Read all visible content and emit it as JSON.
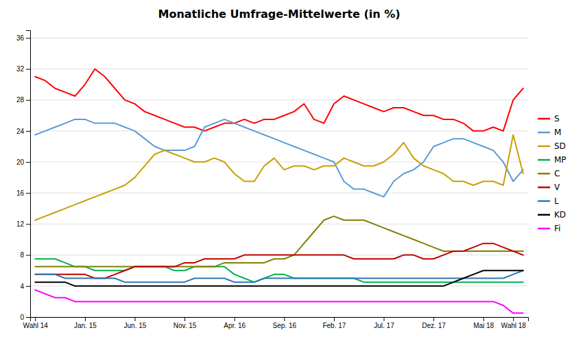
{
  "chart_data": {
    "type": "line",
    "title": "Monatliche Umfrage-Mittelwerte (in %)",
    "categories": [
      "Wahl 14",
      null,
      null,
      null,
      null,
      "Jan. 15",
      null,
      null,
      null,
      null,
      "Jun. 15",
      null,
      null,
      null,
      null,
      "Nov. 15",
      null,
      null,
      null,
      null,
      "Apr. 16",
      null,
      null,
      null,
      null,
      "Sep. 16",
      null,
      null,
      null,
      null,
      "Feb. 17",
      null,
      null,
      null,
      null,
      "Jul. 17",
      null,
      null,
      null,
      null,
      "Dez. 17",
      null,
      null,
      null,
      null,
      "Mai 18",
      null,
      null,
      "Wahl 18",
      null
    ],
    "ylim": [
      0,
      37
    ],
    "yticks": [
      0,
      4,
      8,
      12,
      16,
      20,
      24,
      28,
      32,
      36
    ],
    "grid": true,
    "legend": "right",
    "series": [
      {
        "name": "S",
        "color": "#ff0000",
        "values": [
          31.0,
          30.5,
          29.5,
          29.0,
          28.5,
          30.0,
          32.0,
          31.0,
          29.5,
          28.0,
          27.5,
          26.5,
          26.0,
          25.5,
          25.0,
          24.5,
          24.5,
          24.0,
          24.5,
          25.0,
          25.0,
          25.5,
          25.0,
          25.5,
          25.5,
          26.0,
          26.5,
          27.5,
          25.5,
          25.0,
          27.5,
          28.5,
          28.0,
          27.5,
          27.0,
          26.5,
          27.0,
          27.0,
          26.5,
          26.0,
          26.0,
          25.5,
          25.5,
          25.0,
          24.0,
          24.0,
          24.5,
          24.0,
          28.0,
          29.5
        ]
      },
      {
        "name": "M",
        "color": "#5b9bd5",
        "values": [
          23.5,
          24.0,
          24.5,
          25.0,
          25.5,
          25.5,
          25.0,
          25.0,
          25.0,
          24.5,
          24.0,
          23.0,
          22.0,
          21.5,
          21.5,
          21.5,
          22.0,
          24.5,
          25.0,
          25.5,
          25.0,
          24.5,
          24.0,
          23.5,
          23.0,
          22.5,
          22.0,
          21.5,
          21.0,
          20.5,
          20.0,
          17.5,
          16.5,
          16.5,
          16.0,
          15.5,
          17.5,
          18.5,
          19.0,
          20.0,
          22.0,
          22.5,
          23.0,
          23.0,
          22.5,
          22.0,
          21.5,
          20.0,
          17.5,
          19.0
        ]
      },
      {
        "name": "SD",
        "color": "#c8a000",
        "values": [
          12.5,
          13.0,
          13.5,
          14.0,
          14.5,
          15.0,
          15.5,
          16.0,
          16.5,
          17.0,
          18.0,
          19.5,
          21.0,
          21.5,
          21.0,
          20.5,
          20.0,
          20.0,
          20.5,
          20.0,
          18.5,
          17.5,
          17.5,
          19.5,
          20.5,
          19.0,
          19.5,
          19.5,
          19.0,
          19.5,
          19.5,
          20.5,
          20.0,
          19.5,
          19.5,
          20.0,
          21.0,
          22.5,
          20.5,
          19.5,
          19.0,
          18.5,
          17.5,
          17.5,
          17.0,
          17.5,
          17.5,
          17.0,
          23.5,
          18.5
        ]
      },
      {
        "name": "MP",
        "color": "#00b050",
        "values": [
          7.5,
          7.5,
          7.5,
          7.0,
          6.5,
          6.5,
          6.0,
          6.0,
          6.0,
          6.0,
          6.5,
          6.5,
          6.5,
          6.5,
          6.0,
          6.0,
          6.5,
          6.5,
          6.5,
          6.5,
          5.5,
          5.0,
          4.5,
          5.0,
          5.5,
          5.5,
          5.0,
          5.0,
          5.0,
          5.0,
          5.0,
          5.0,
          5.0,
          4.5,
          4.5,
          4.5,
          4.5,
          4.5,
          4.5,
          4.5,
          4.5,
          4.5,
          4.5,
          4.5,
          4.5,
          4.5,
          4.5,
          4.5,
          4.5,
          4.5
        ]
      },
      {
        "name": "C",
        "color": "#808000",
        "values": [
          6.5,
          6.5,
          6.5,
          6.5,
          6.5,
          6.5,
          6.5,
          6.5,
          6.5,
          6.5,
          6.5,
          6.5,
          6.5,
          6.5,
          6.5,
          6.5,
          6.5,
          6.5,
          6.5,
          7.0,
          7.0,
          7.0,
          7.0,
          7.0,
          7.5,
          7.5,
          8.0,
          9.5,
          11.0,
          12.5,
          13.0,
          12.5,
          12.5,
          12.5,
          12.0,
          11.5,
          11.0,
          10.5,
          10.0,
          9.5,
          9.0,
          8.5,
          8.5,
          8.5,
          8.5,
          8.5,
          8.5,
          8.5,
          8.5,
          8.5
        ]
      },
      {
        "name": "V",
        "color": "#c00000",
        "values": [
          5.5,
          5.5,
          5.5,
          5.5,
          5.5,
          5.5,
          5.0,
          5.0,
          5.5,
          6.0,
          6.5,
          6.5,
          6.5,
          6.5,
          6.5,
          7.0,
          7.0,
          7.5,
          7.5,
          7.5,
          7.5,
          8.0,
          8.0,
          8.0,
          8.0,
          8.0,
          8.0,
          8.0,
          8.0,
          8.0,
          8.0,
          8.0,
          7.5,
          7.5,
          7.5,
          7.5,
          7.5,
          8.0,
          8.0,
          7.5,
          7.5,
          8.0,
          8.5,
          8.5,
          9.0,
          9.5,
          9.5,
          9.0,
          8.5,
          8.0
        ]
      },
      {
        "name": "L",
        "color": "#2e75b6",
        "values": [
          5.5,
          5.5,
          5.5,
          5.0,
          5.0,
          5.0,
          5.0,
          5.0,
          5.0,
          4.5,
          4.5,
          4.5,
          4.5,
          4.5,
          4.5,
          4.5,
          5.0,
          5.0,
          5.0,
          5.0,
          4.5,
          4.5,
          4.5,
          5.0,
          5.0,
          5.0,
          5.0,
          5.0,
          5.0,
          5.0,
          5.0,
          5.0,
          5.0,
          5.0,
          5.0,
          5.0,
          5.0,
          5.0,
          5.0,
          5.0,
          5.0,
          5.0,
          5.0,
          5.0,
          5.0,
          5.0,
          5.0,
          5.0,
          5.5,
          6.0
        ]
      },
      {
        "name": "KD",
        "color": "#000000",
        "values": [
          4.5,
          4.5,
          4.5,
          4.5,
          4.0,
          4.0,
          4.0,
          4.0,
          4.0,
          4.0,
          4.0,
          4.0,
          4.0,
          4.0,
          4.0,
          4.0,
          4.0,
          4.0,
          4.0,
          4.0,
          4.0,
          4.0,
          4.0,
          4.0,
          4.0,
          4.0,
          4.0,
          4.0,
          4.0,
          4.0,
          4.0,
          4.0,
          4.0,
          4.0,
          4.0,
          4.0,
          4.0,
          4.0,
          4.0,
          4.0,
          4.0,
          4.0,
          4.5,
          5.0,
          5.5,
          6.0,
          6.0,
          6.0,
          6.0,
          6.0
        ]
      },
      {
        "name": "Fi",
        "color": "#ff00ff",
        "values": [
          3.5,
          3.0,
          2.5,
          2.5,
          2.0,
          2.0,
          2.0,
          2.0,
          2.0,
          2.0,
          2.0,
          2.0,
          2.0,
          2.0,
          2.0,
          2.0,
          2.0,
          2.0,
          2.0,
          2.0,
          2.0,
          2.0,
          2.0,
          2.0,
          2.0,
          2.0,
          2.0,
          2.0,
          2.0,
          2.0,
          2.0,
          2.0,
          2.0,
          2.0,
          2.0,
          2.0,
          2.0,
          2.0,
          2.0,
          2.0,
          2.0,
          2.0,
          2.0,
          2.0,
          2.0,
          2.0,
          2.0,
          1.5,
          0.5,
          0.5
        ]
      }
    ]
  }
}
